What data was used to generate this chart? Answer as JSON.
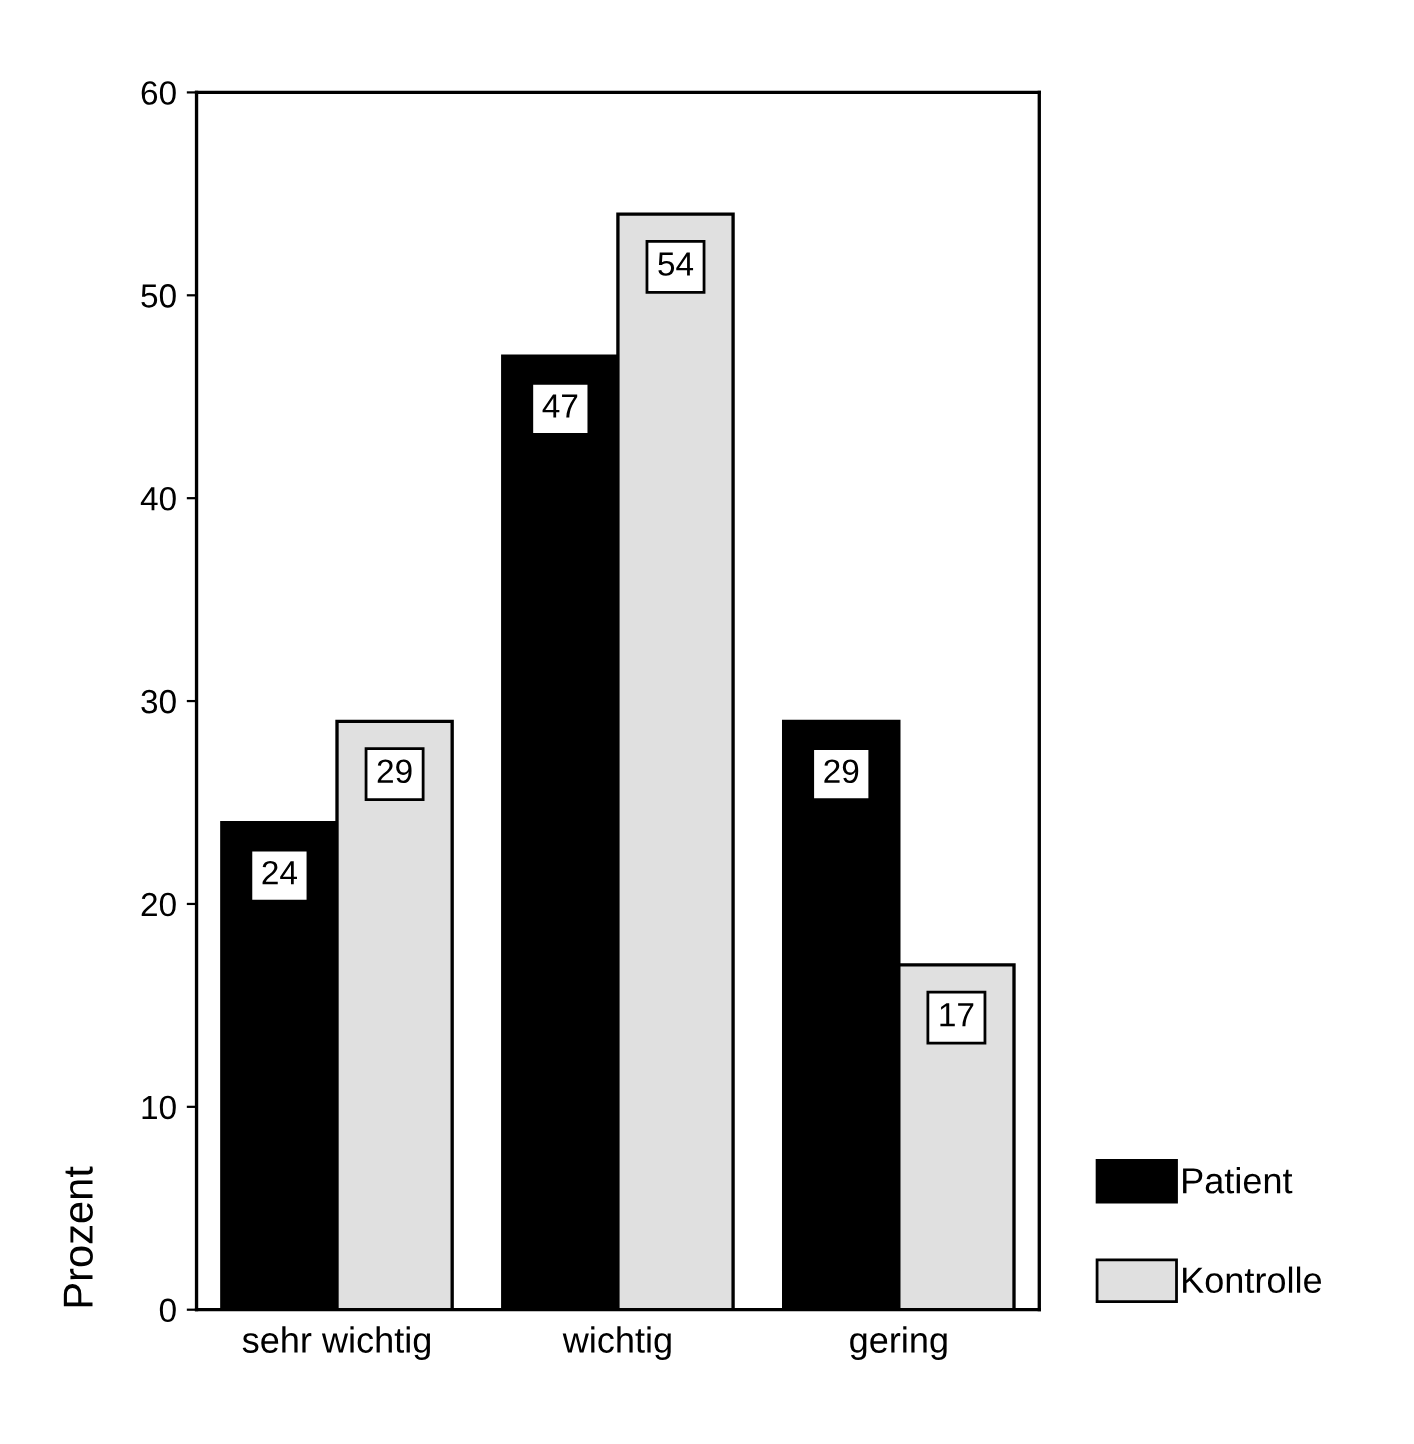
{
  "chart_data": {
    "type": "bar",
    "ylabel": "Prozent",
    "categories": [
      "sehr wichtig",
      "wichtig",
      "gering"
    ],
    "series": [
      {
        "name": "Patient",
        "color": "#000000",
        "values": [
          24,
          47,
          29
        ]
      },
      {
        "name": "Kontrolle",
        "color": "#e0e0e0",
        "values": [
          29,
          54,
          17
        ]
      }
    ],
    "ylim": [
      0,
      60
    ],
    "yticks": [
      0,
      10,
      20,
      30,
      40,
      50,
      60
    ],
    "data_labels": true,
    "legend": "bottom right",
    "grid": false
  }
}
